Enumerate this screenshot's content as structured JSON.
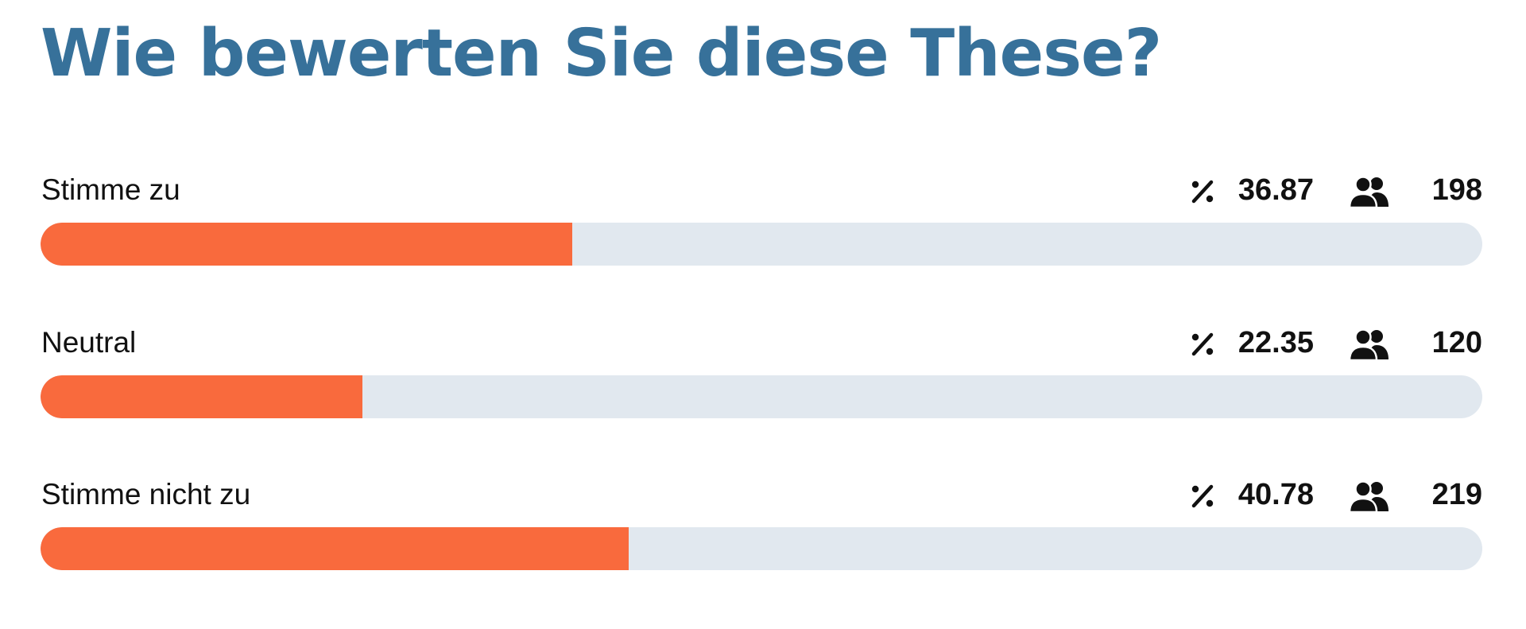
{
  "poll": {
    "title": "Wie bewerten Sie diese These?",
    "options": [
      {
        "label": "Stimme zu",
        "percent": "36.87",
        "count": "198",
        "fraction": 0.3687
      },
      {
        "label": "Neutral",
        "percent": "22.35",
        "count": "120",
        "fraction": 0.2235
      },
      {
        "label": "Stimme nicht zu",
        "percent": "40.78",
        "count": "219",
        "fraction": 0.4078
      }
    ]
  },
  "icons": {
    "percent": "percent-icon",
    "users": "users-icon"
  },
  "colors": {
    "title": "#37719a",
    "bar_fill": "#f96a3d",
    "bar_track": "#e1e8ef",
    "text": "#111111"
  }
}
